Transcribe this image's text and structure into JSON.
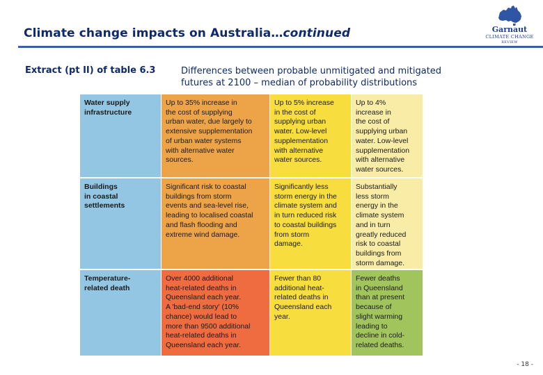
{
  "header": {
    "title_main": "Climate change impacts on Australia…",
    "title_emph": "continued"
  },
  "logo": {
    "name": "Garnaut",
    "sub": "CLIMATE CHANGE",
    "sub2": "REVIEW",
    "icon": "australia-map-icon"
  },
  "extract": {
    "label": "Extract (pt II) of table 6.3",
    "description": "Differences between probable unmitigated and mitigated futures at 2100 – median of probability distributions"
  },
  "table": {
    "rows": [
      {
        "category": "Water supply\ninfrastructure",
        "cells": [
          "Up to 35% increase in\nthe cost of supplying\nurban water, due largely to\nextensive supplementation\nof urban water systems\nwith alternative water\nsources.",
          "Up to 5% increase\nin the cost of\nsupplying urban\nwater. Low-level\nsupplementation\nwith alternative\nwater sources.",
          "Up to 4%\nincrease in\nthe cost of\nsupplying urban\nwater. Low-level\nsupplementation\nwith alternative\nwater sources."
        ]
      },
      {
        "category": "Buildings\nin coastal\nsettlements",
        "cells": [
          "Significant risk to coastal\nbuildings from storm\nevents and sea-level rise,\nleading to localised coastal\nand flash flooding and\nextreme wind damage.",
          "Significantly less\nstorm energy in the\nclimate system and\nin turn reduced risk\nto coastal buildings\nfrom storm\ndamage.",
          "Substantially\nless storm\nenergy in the\nclimate system\nand in turn\ngreatly reduced\nrisk to coastal\nbuildings from\nstorm damage."
        ]
      },
      {
        "category": "Temperature-\nrelated death",
        "cells": [
          "Over 4000 additional\nheat-related deaths in\nQueensland each year.\nA 'bad-end story' (10%\nchance) would lead to\nmore than 9500 additional\nheat-related deaths in\nQueensland each year.",
          "Fewer than 80\nadditional heat-\nrelated deaths in\nQueensland each\nyear.",
          "Fewer deaths\nin Queensland\nthan at present\nbecause of\nslight warming\nleading to\ndecline in cold-\nrelated deaths."
        ]
      }
    ]
  },
  "footer": {
    "page_number": "- 18 -"
  }
}
